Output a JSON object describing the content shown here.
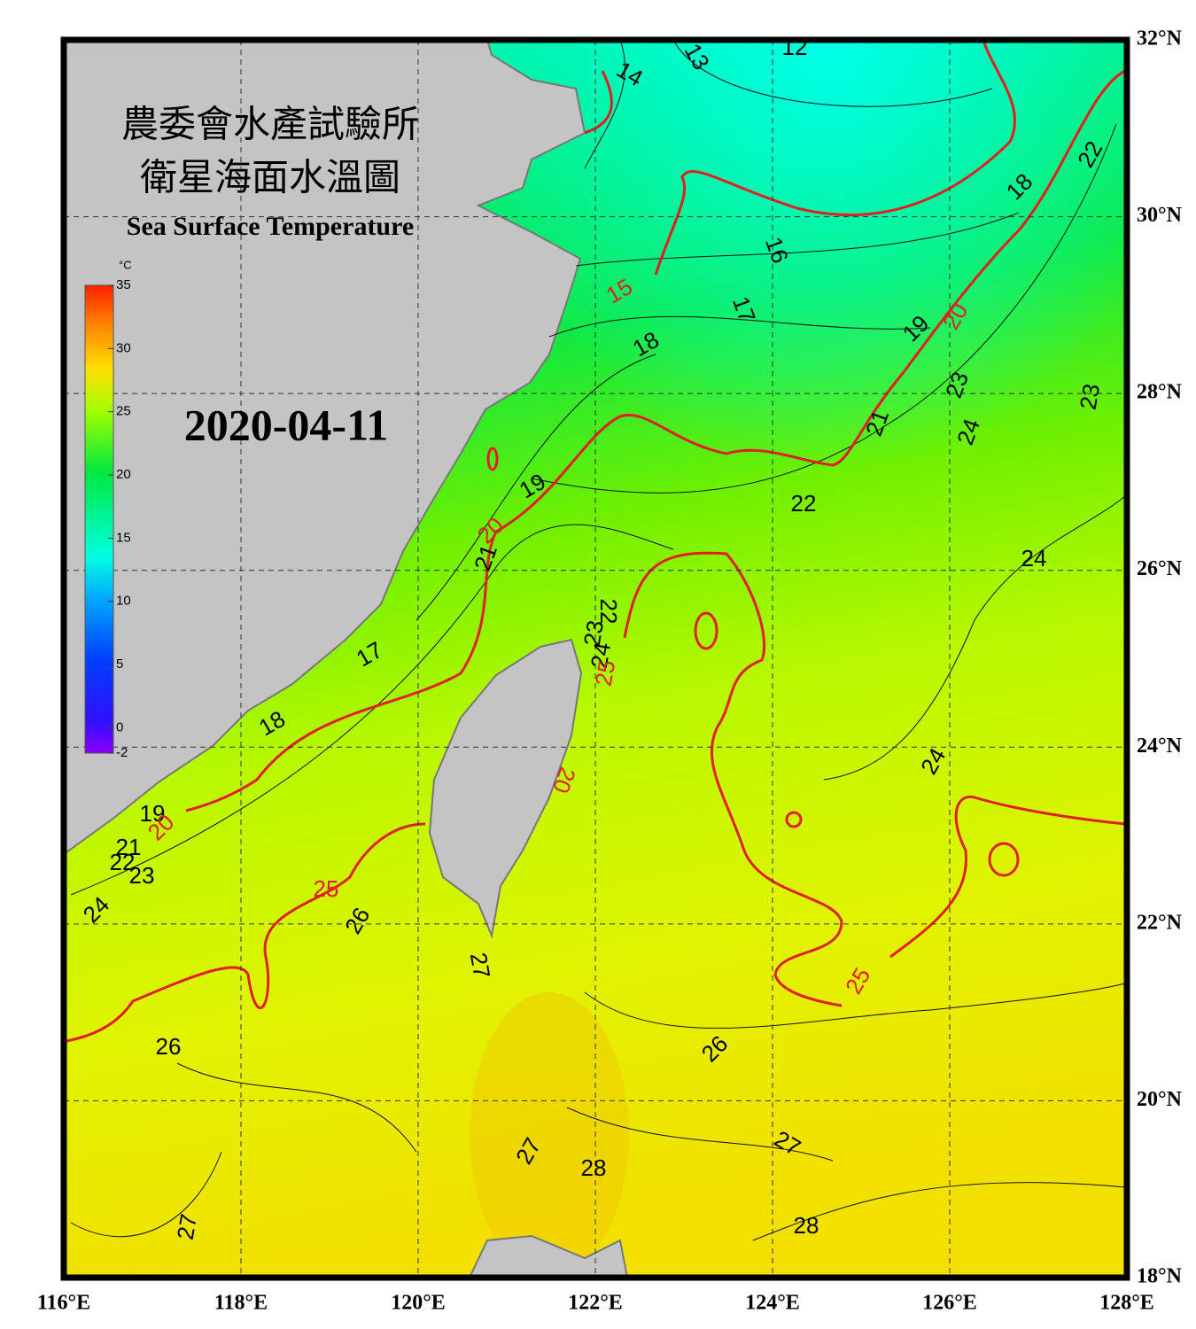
{
  "header": {
    "title_zh_1": "農委會水產試驗所",
    "title_zh_2": "衛星海面水溫圖",
    "title_en": "Sea Surface Temperature",
    "date": "2020-04-11"
  },
  "colorbar": {
    "unit": "°C",
    "ticks": [
      35,
      30,
      25,
      20,
      15,
      10,
      5,
      0,
      -2
    ],
    "lim": [
      -2,
      35
    ]
  },
  "map": {
    "xlim": [
      116,
      128
    ],
    "ylim": [
      18,
      32
    ],
    "xticks": [
      {
        "value": 116,
        "label": "116°E"
      },
      {
        "value": 118,
        "label": "118°E"
      },
      {
        "value": 120,
        "label": "120°E"
      },
      {
        "value": 122,
        "label": "122°E"
      },
      {
        "value": 124,
        "label": "124°E"
      },
      {
        "value": 126,
        "label": "126°E"
      },
      {
        "value": 128,
        "label": "128°E"
      }
    ],
    "yticks": [
      {
        "value": 32,
        "label": "32°N"
      },
      {
        "value": 30,
        "label": "30°N"
      },
      {
        "value": 28,
        "label": "28°N"
      },
      {
        "value": 26,
        "label": "26°N"
      },
      {
        "value": 24,
        "label": "24°N"
      },
      {
        "value": 22,
        "label": "22°N"
      },
      {
        "value": 20,
        "label": "20°N"
      },
      {
        "value": 18,
        "label": "18°N"
      }
    ]
  },
  "contour_labels": [
    "13",
    "12",
    "14",
    "15",
    "16",
    "17",
    "18",
    "18",
    "22",
    "19",
    "20",
    "23",
    "23",
    "24",
    "21",
    "22",
    "19",
    "20",
    "21",
    "24",
    "22",
    "23",
    "24",
    "25",
    "17",
    "18",
    "24",
    "20",
    "19",
    "20",
    "21",
    "22",
    "23",
    "24",
    "25",
    "26",
    "27",
    "25",
    "26",
    "26",
    "27",
    "27",
    "28",
    "28",
    "27"
  ]
}
